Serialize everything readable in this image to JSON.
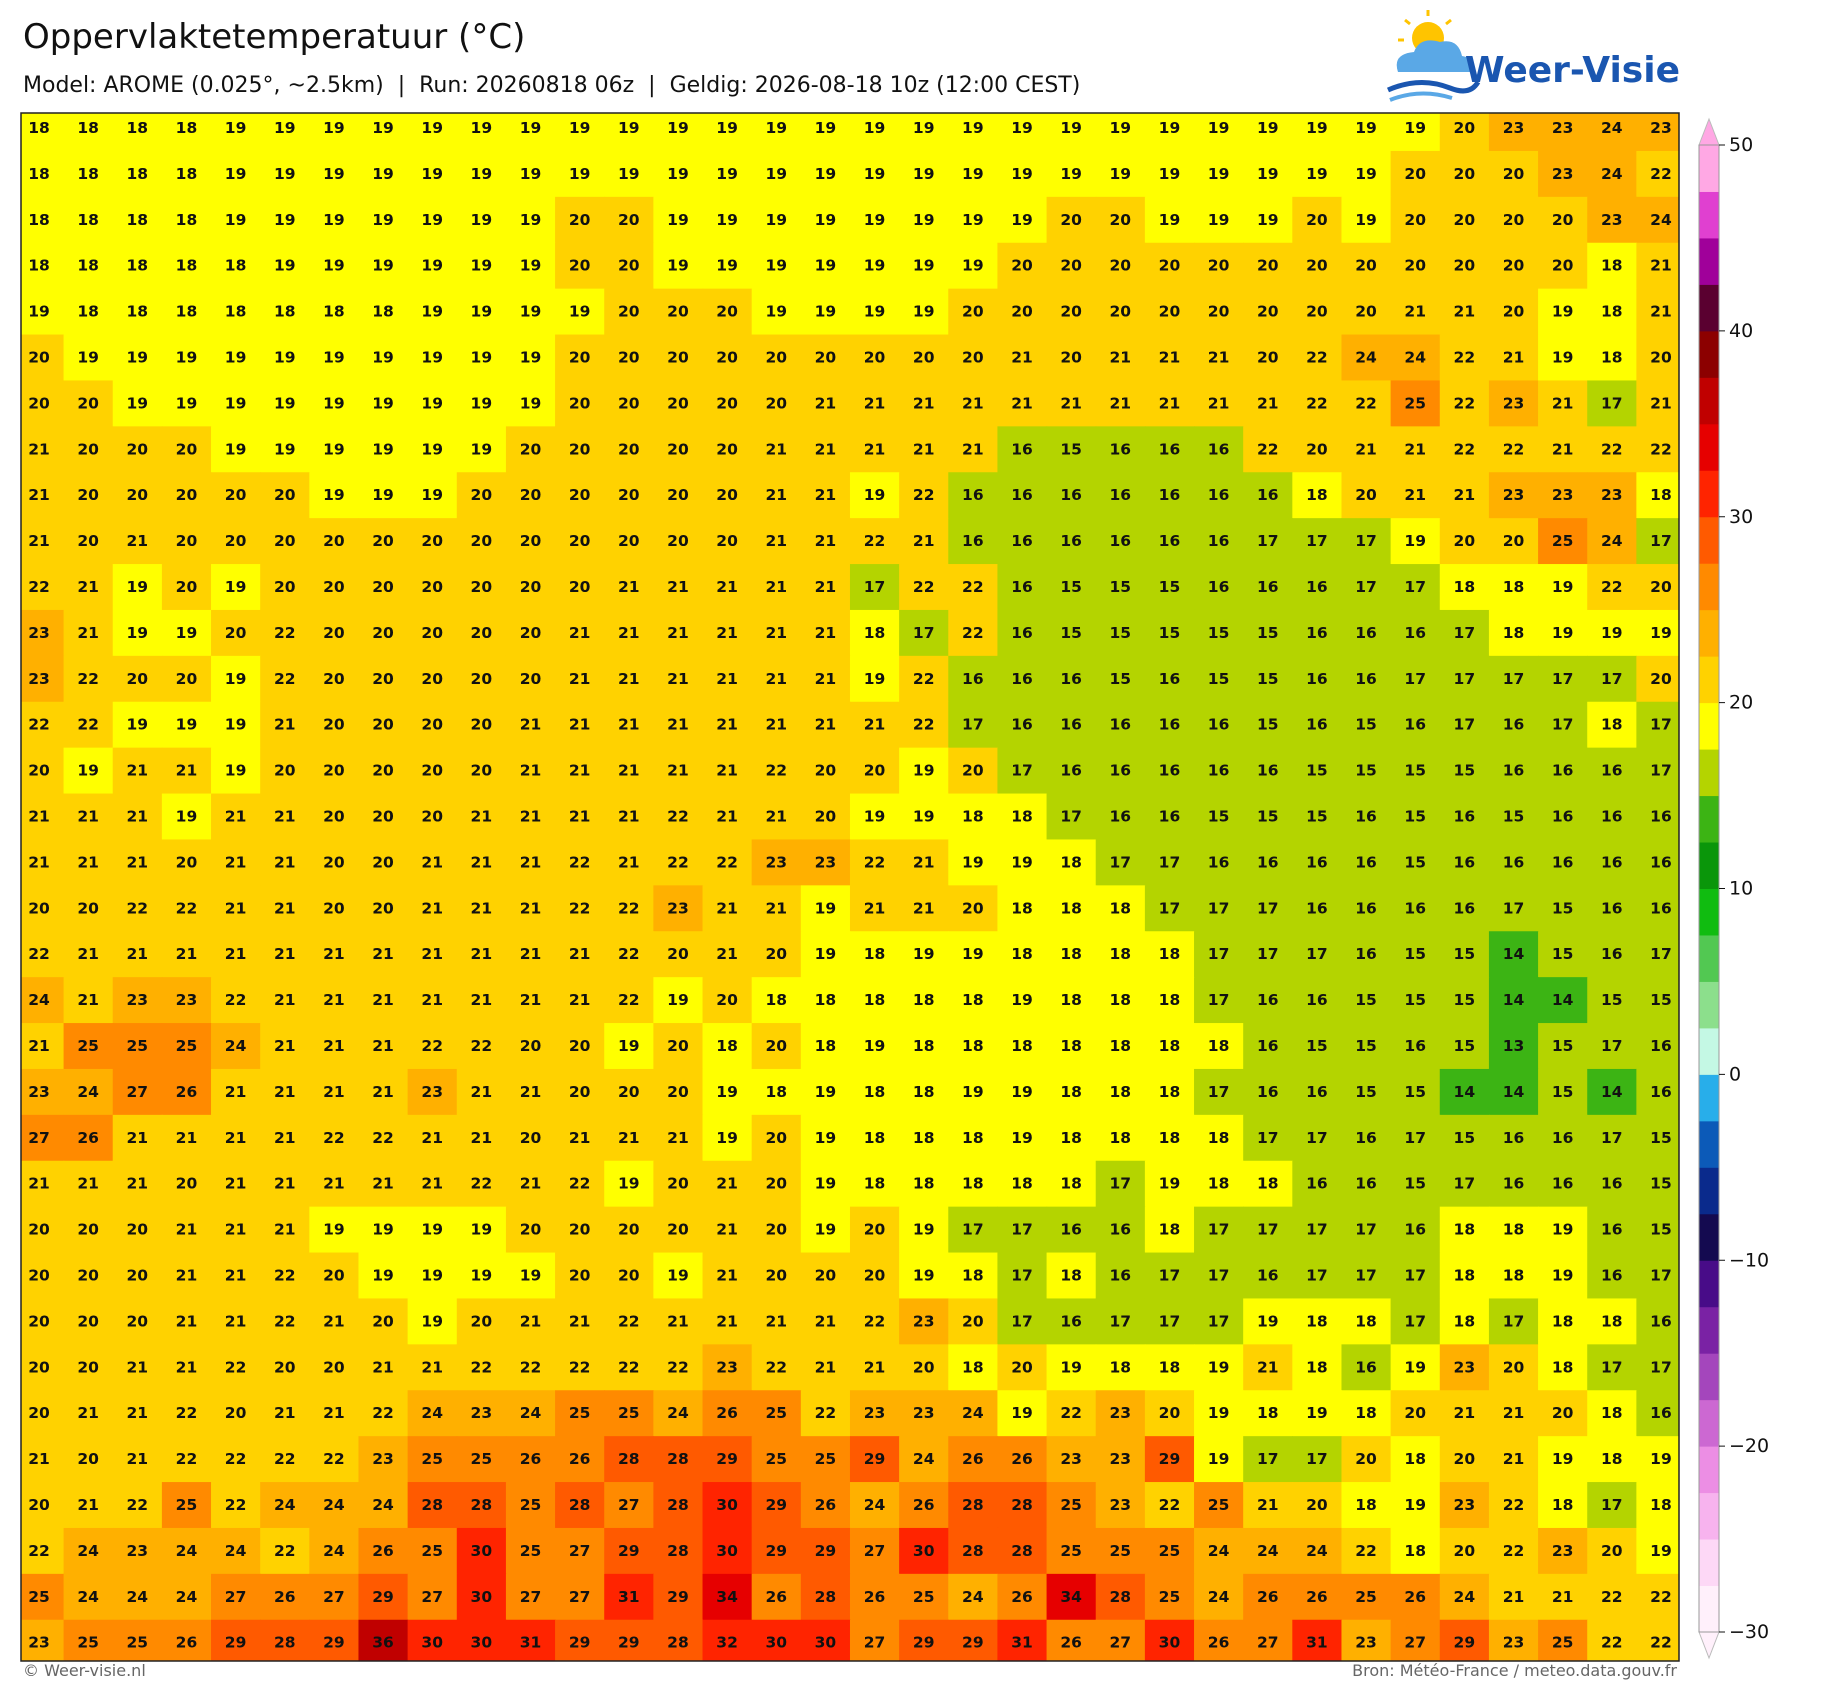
{
  "header": {
    "title": "Oppervlaktetemperatuur (°C)",
    "subtitle": "Model: AROME (0.025°, ~2.5km)  |  Run: 20260818 06z  |  Geldig: 2026-08-18 10z (12:00 CEST)"
  },
  "logo": "Weer-Visie",
  "map": {
    "rows": [
      [
        18,
        18,
        18,
        18,
        19,
        19,
        19,
        19,
        19,
        19,
        19,
        19,
        19,
        19,
        19,
        19,
        19,
        19,
        19,
        19,
        19,
        19,
        19,
        19,
        19,
        19,
        19,
        19,
        19,
        20,
        23,
        23,
        24,
        23
      ],
      [
        18,
        18,
        18,
        18,
        19,
        19,
        19,
        19,
        19,
        19,
        19,
        19,
        19,
        19,
        19,
        19,
        19,
        19,
        19,
        19,
        19,
        19,
        19,
        19,
        19,
        19,
        19,
        19,
        20,
        20,
        20,
        23,
        24,
        22
      ],
      [
        18,
        18,
        18,
        18,
        19,
        19,
        19,
        19,
        19,
        19,
        19,
        20,
        20,
        19,
        19,
        19,
        19,
        19,
        19,
        19,
        19,
        20,
        20,
        19,
        19,
        19,
        20,
        19,
        20,
        20,
        20,
        20,
        23,
        24
      ],
      [
        18,
        18,
        18,
        18,
        18,
        19,
        19,
        19,
        19,
        19,
        19,
        20,
        20,
        19,
        19,
        19,
        19,
        19,
        19,
        19,
        20,
        20,
        20,
        20,
        20,
        20,
        20,
        20,
        20,
        20,
        20,
        20,
        18,
        21
      ],
      [
        19,
        18,
        18,
        18,
        18,
        18,
        18,
        18,
        19,
        19,
        19,
        19,
        20,
        20,
        20,
        19,
        19,
        19,
        19,
        20,
        20,
        20,
        20,
        20,
        20,
        20,
        20,
        20,
        21,
        21,
        20,
        19,
        18,
        21
      ],
      [
        20,
        19,
        19,
        19,
        19,
        19,
        19,
        19,
        19,
        19,
        19,
        20,
        20,
        20,
        20,
        20,
        20,
        20,
        20,
        20,
        21,
        20,
        21,
        21,
        21,
        20,
        22,
        24,
        24,
        22,
        21,
        19,
        18,
        20
      ],
      [
        20,
        20,
        19,
        19,
        19,
        19,
        19,
        19,
        19,
        19,
        19,
        20,
        20,
        20,
        20,
        20,
        21,
        21,
        21,
        21,
        21,
        21,
        21,
        21,
        21,
        21,
        22,
        22,
        25,
        22,
        23,
        21,
        17,
        21
      ],
      [
        21,
        20,
        20,
        20,
        19,
        19,
        19,
        19,
        19,
        19,
        20,
        20,
        20,
        20,
        20,
        21,
        21,
        21,
        21,
        21,
        16,
        15,
        16,
        16,
        16,
        22,
        20,
        21,
        21,
        22,
        22,
        21,
        22,
        22
      ],
      [
        21,
        20,
        20,
        20,
        20,
        20,
        19,
        19,
        19,
        20,
        20,
        20,
        20,
        20,
        20,
        21,
        21,
        19,
        22,
        16,
        16,
        16,
        16,
        16,
        16,
        16,
        18,
        20,
        21,
        21,
        23,
        23,
        23,
        18
      ],
      [
        21,
        20,
        21,
        20,
        20,
        20,
        20,
        20,
        20,
        20,
        20,
        20,
        20,
        20,
        20,
        21,
        21,
        22,
        21,
        16,
        16,
        16,
        16,
        16,
        16,
        17,
        17,
        17,
        19,
        20,
        20,
        25,
        24,
        17
      ],
      [
        22,
        21,
        19,
        20,
        19,
        20,
        20,
        20,
        20,
        20,
        20,
        20,
        21,
        21,
        21,
        21,
        21,
        17,
        22,
        22,
        16,
        15,
        15,
        15,
        16,
        16,
        16,
        17,
        17,
        18,
        18,
        19,
        22,
        20
      ],
      [
        23,
        21,
        19,
        19,
        20,
        22,
        20,
        20,
        20,
        20,
        20,
        21,
        21,
        21,
        21,
        21,
        21,
        18,
        17,
        22,
        16,
        15,
        15,
        15,
        15,
        15,
        16,
        16,
        16,
        17,
        18,
        19,
        19,
        19
      ],
      [
        23,
        22,
        20,
        20,
        19,
        22,
        20,
        20,
        20,
        20,
        20,
        21,
        21,
        21,
        21,
        21,
        21,
        19,
        22,
        16,
        16,
        16,
        15,
        16,
        15,
        15,
        16,
        16,
        17,
        17,
        17,
        17,
        17,
        20
      ],
      [
        22,
        22,
        19,
        19,
        19,
        21,
        20,
        20,
        20,
        20,
        21,
        21,
        21,
        21,
        21,
        21,
        21,
        21,
        22,
        17,
        16,
        16,
        16,
        16,
        16,
        15,
        16,
        15,
        16,
        17,
        16,
        17,
        18,
        17
      ],
      [
        20,
        19,
        21,
        21,
        19,
        20,
        20,
        20,
        20,
        20,
        21,
        21,
        21,
        21,
        21,
        22,
        20,
        20,
        19,
        20,
        17,
        16,
        16,
        16,
        16,
        16,
        15,
        15,
        15,
        15,
        16,
        16,
        16,
        17
      ],
      [
        21,
        21,
        21,
        19,
        21,
        21,
        20,
        20,
        20,
        21,
        21,
        21,
        21,
        22,
        21,
        21,
        20,
        19,
        19,
        18,
        18,
        17,
        16,
        16,
        15,
        15,
        15,
        16,
        15,
        16,
        15,
        16,
        16,
        16
      ],
      [
        21,
        21,
        21,
        20,
        21,
        21,
        20,
        20,
        21,
        21,
        21,
        22,
        21,
        22,
        22,
        23,
        23,
        22,
        21,
        19,
        19,
        18,
        17,
        17,
        16,
        16,
        16,
        16,
        15,
        16,
        16,
        16,
        16,
        16
      ],
      [
        20,
        20,
        22,
        22,
        21,
        21,
        20,
        20,
        21,
        21,
        21,
        22,
        22,
        23,
        21,
        21,
        19,
        21,
        21,
        20,
        18,
        18,
        18,
        17,
        17,
        17,
        16,
        16,
        16,
        16,
        17,
        15,
        16,
        16
      ],
      [
        22,
        21,
        21,
        21,
        21,
        21,
        21,
        21,
        21,
        21,
        21,
        21,
        22,
        20,
        21,
        20,
        19,
        18,
        19,
        19,
        18,
        18,
        18,
        18,
        17,
        17,
        17,
        16,
        15,
        15,
        14,
        15,
        16,
        17
      ],
      [
        24,
        21,
        23,
        23,
        22,
        21,
        21,
        21,
        21,
        21,
        21,
        21,
        22,
        19,
        20,
        18,
        18,
        18,
        18,
        18,
        19,
        18,
        18,
        18,
        17,
        16,
        16,
        15,
        15,
        15,
        14,
        14,
        15,
        15
      ],
      [
        21,
        25,
        25,
        25,
        24,
        21,
        21,
        21,
        22,
        22,
        20,
        20,
        19,
        20,
        18,
        20,
        18,
        19,
        18,
        18,
        18,
        18,
        18,
        18,
        18,
        16,
        15,
        15,
        16,
        15,
        13,
        15,
        17,
        16
      ],
      [
        23,
        24,
        27,
        26,
        21,
        21,
        21,
        21,
        23,
        21,
        21,
        20,
        20,
        20,
        19,
        18,
        19,
        18,
        18,
        19,
        19,
        18,
        18,
        18,
        17,
        16,
        16,
        15,
        15,
        14,
        14,
        15,
        14,
        16
      ],
      [
        27,
        26,
        21,
        21,
        21,
        21,
        22,
        22,
        21,
        21,
        20,
        21,
        21,
        21,
        19,
        20,
        19,
        18,
        18,
        18,
        19,
        18,
        18,
        18,
        18,
        17,
        17,
        16,
        17,
        15,
        16,
        16,
        17,
        15
      ],
      [
        21,
        21,
        21,
        20,
        21,
        21,
        21,
        21,
        21,
        22,
        21,
        22,
        19,
        20,
        21,
        20,
        19,
        18,
        18,
        18,
        18,
        18,
        17,
        19,
        18,
        18,
        16,
        16,
        15,
        17,
        16,
        16,
        16,
        15
      ],
      [
        20,
        20,
        20,
        21,
        21,
        21,
        19,
        19,
        19,
        19,
        20,
        20,
        20,
        20,
        21,
        20,
        19,
        20,
        19,
        17,
        17,
        16,
        16,
        18,
        17,
        17,
        17,
        17,
        16,
        18,
        18,
        19,
        16,
        15
      ],
      [
        20,
        20,
        20,
        21,
        21,
        22,
        20,
        19,
        19,
        19,
        19,
        20,
        20,
        19,
        21,
        20,
        20,
        20,
        19,
        18,
        17,
        18,
        16,
        17,
        17,
        16,
        17,
        17,
        17,
        18,
        18,
        19,
        16,
        17
      ],
      [
        20,
        20,
        20,
        21,
        21,
        22,
        21,
        20,
        19,
        20,
        21,
        21,
        22,
        21,
        21,
        21,
        21,
        22,
        23,
        20,
        17,
        16,
        17,
        17,
        17,
        19,
        18,
        18,
        17,
        18,
        17,
        18,
        18,
        16
      ],
      [
        20,
        20,
        21,
        21,
        22,
        20,
        20,
        21,
        21,
        22,
        22,
        22,
        22,
        22,
        23,
        22,
        21,
        21,
        20,
        18,
        20,
        19,
        18,
        18,
        19,
        21,
        18,
        16,
        19,
        23,
        20,
        18,
        17,
        17
      ],
      [
        20,
        21,
        21,
        22,
        20,
        21,
        21,
        22,
        24,
        23,
        24,
        25,
        25,
        24,
        26,
        25,
        22,
        23,
        23,
        24,
        19,
        22,
        23,
        20,
        19,
        18,
        19,
        18,
        20,
        21,
        21,
        20,
        18,
        16
      ],
      [
        21,
        20,
        21,
        22,
        22,
        22,
        22,
        23,
        25,
        25,
        26,
        26,
        28,
        28,
        29,
        25,
        25,
        29,
        24,
        26,
        26,
        23,
        23,
        29,
        19,
        17,
        17,
        20,
        18,
        20,
        21,
        19,
        18,
        19
      ],
      [
        20,
        21,
        22,
        25,
        22,
        24,
        24,
        24,
        28,
        28,
        25,
        28,
        27,
        28,
        30,
        29,
        26,
        24,
        26,
        28,
        28,
        25,
        23,
        22,
        25,
        21,
        20,
        18,
        19,
        23,
        22,
        18,
        17,
        18
      ],
      [
        22,
        24,
        23,
        24,
        24,
        22,
        24,
        26,
        25,
        30,
        25,
        27,
        29,
        28,
        30,
        29,
        29,
        27,
        30,
        28,
        28,
        25,
        25,
        25,
        24,
        24,
        24,
        22,
        18,
        20,
        22,
        23,
        20,
        19
      ],
      [
        25,
        24,
        24,
        24,
        27,
        26,
        27,
        29,
        27,
        30,
        27,
        27,
        31,
        29,
        34,
        26,
        28,
        26,
        25,
        24,
        26,
        34,
        28,
        25,
        24,
        26,
        26,
        25,
        26,
        24,
        21,
        21,
        22,
        22
      ],
      [
        23,
        25,
        25,
        26,
        29,
        28,
        29,
        36,
        30,
        30,
        31,
        29,
        29,
        28,
        32,
        30,
        30,
        27,
        29,
        29,
        31,
        26,
        27,
        30,
        26,
        27,
        31,
        23,
        27,
        29,
        23,
        25,
        22,
        22
      ]
    ]
  },
  "colorbar": {
    "lim": [
      -30,
      50
    ],
    "ticks": [
      50,
      40,
      30,
      20,
      10,
      0,
      {
        "value": -10,
        "label": "−10"
      },
      {
        "value": -20,
        "label": "−20"
      },
      {
        "value": -30,
        "label": "−30"
      }
    ],
    "colors": [
      "#fff0fb",
      "#fdd8f6",
      "#f7b3ee",
      "#ec8ee4",
      "#cc68d2",
      "#a446bc",
      "#7a22a4",
      "#480c88",
      "#140a50",
      "#0a2a8c",
      "#0c5ab8",
      "#28aeea",
      "#c4f8e4",
      "#8cdf8c",
      "#52c852",
      "#10bc10",
      "#0a960a",
      "#3cb414",
      "#b4d400",
      "#ffff00",
      "#ffd200",
      "#ffb000",
      "#ff8a00",
      "#ff5a00",
      "#ff2400",
      "#e60000",
      "#c00000",
      "#8c0000",
      "#5a0030",
      "#a0009a",
      "#e040d0",
      "#ffa8e4"
    ]
  },
  "footer": {
    "left": "© Weer-visie.nl",
    "right": "Bron: Météo-France / meteo.data.gouv.fr"
  }
}
